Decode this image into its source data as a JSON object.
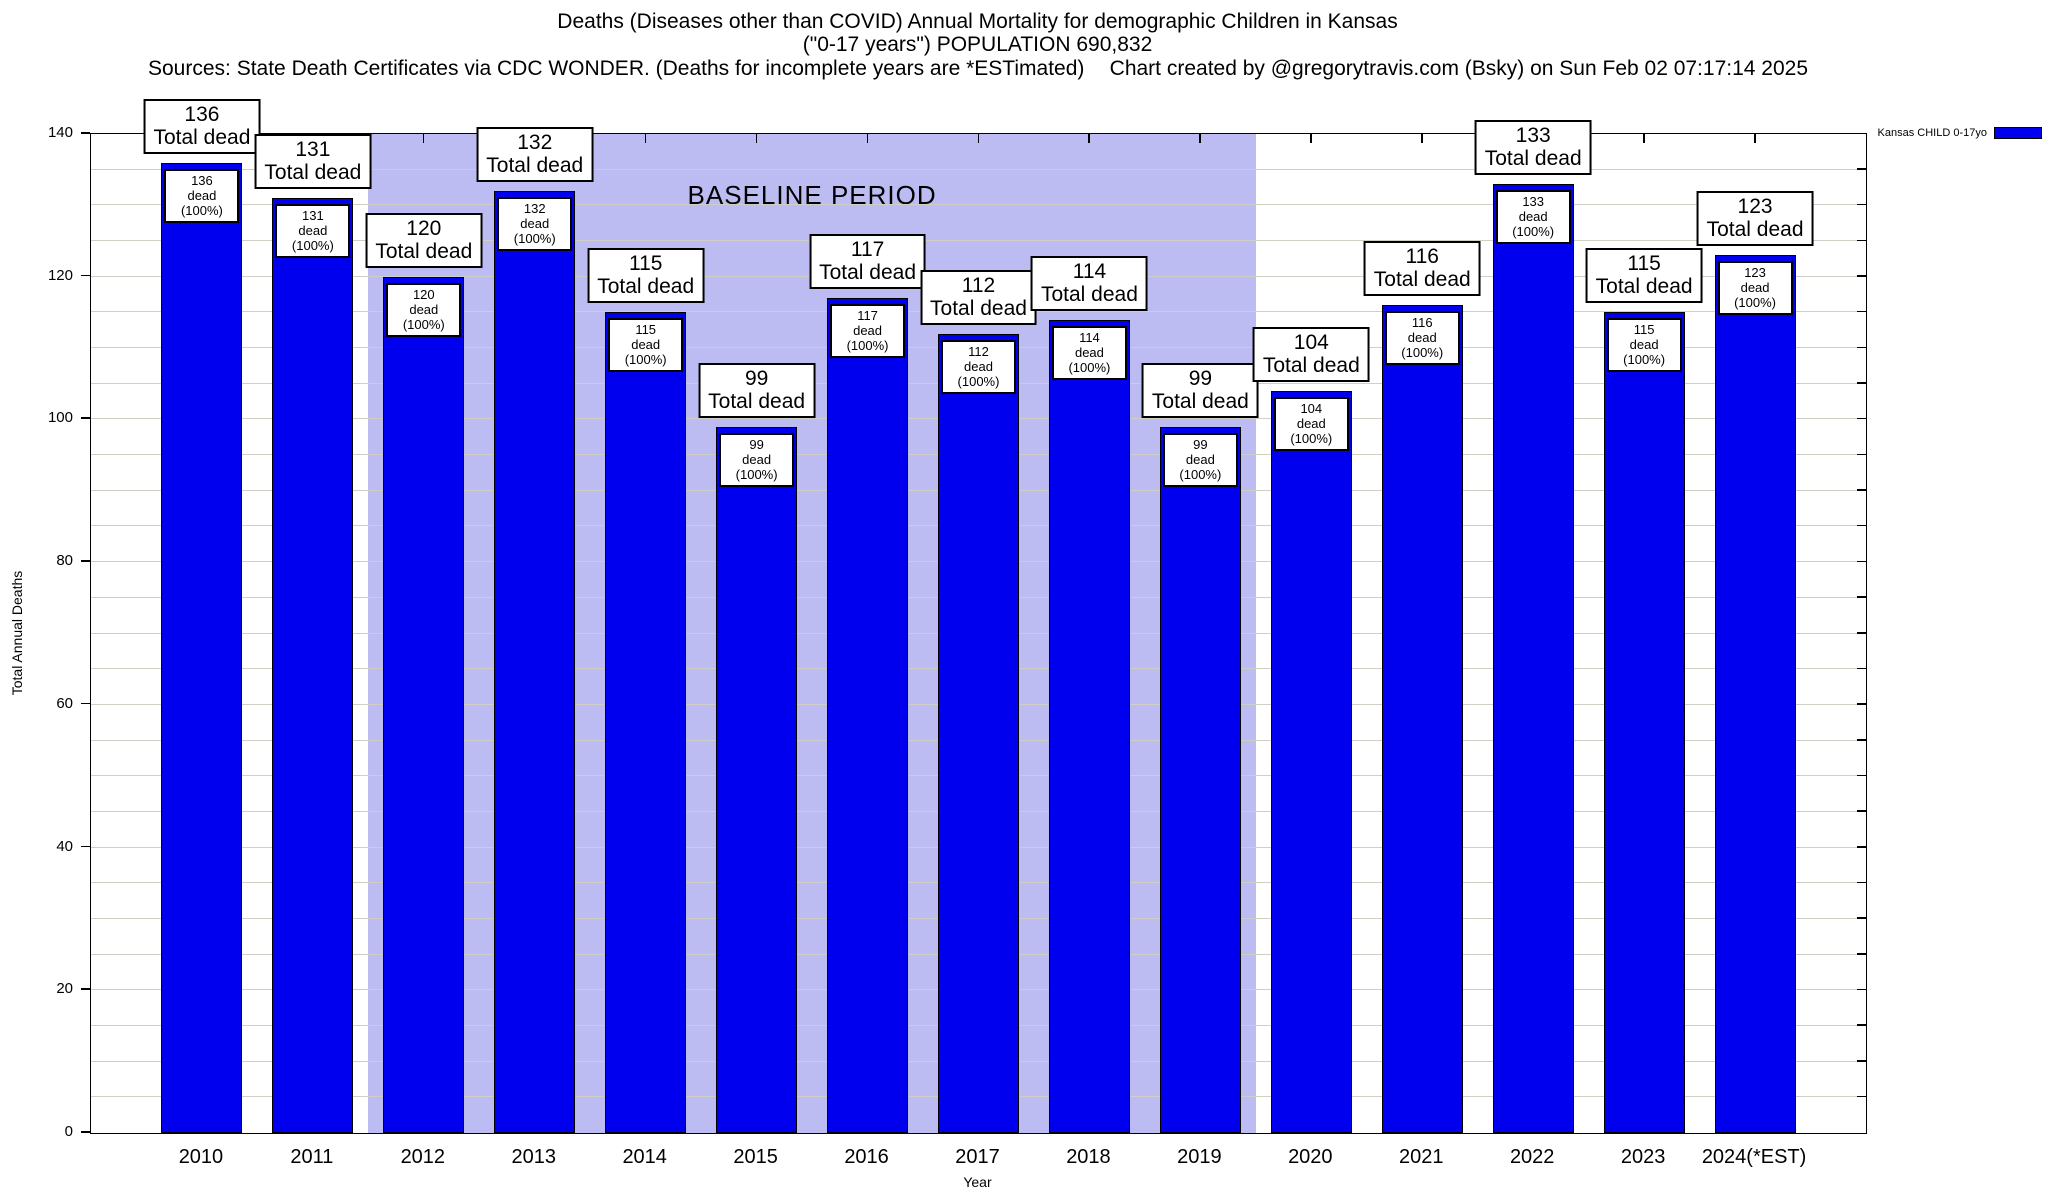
{
  "header": {
    "title_line1": "Deaths (Diseases other than COVID) Annual Mortality for demographic Children in Kansas",
    "title_line2": "(\"0-17 years\") POPULATION 690,832",
    "sources": "Sources: State Death Certificates via CDC WONDER. (Deaths for incomplete years are *ESTimated)",
    "credit": "Chart created by @gregorytravis.com (Bsky) on Sun Feb 02 07:17:14 2025"
  },
  "legend": {
    "label": "Kansas CHILD 0-17yo",
    "swatch_color": "#0000ee"
  },
  "chart_data": {
    "type": "bar",
    "title": "Deaths (Diseases other than COVID) Annual Mortality for demographic Children in Kansas (\"0-17 years\") POPULATION 690,832",
    "xlabel": "Year",
    "ylabel": "Total Annual Deaths",
    "ylim": [
      0,
      140
    ],
    "y_major_ticks": [
      0,
      20,
      40,
      60,
      80,
      100,
      120,
      140
    ],
    "y_minor_step": 5,
    "grid": true,
    "legend_position": "top-right",
    "bar_color": "#0000ee",
    "categories": [
      "2010",
      "2011",
      "2012",
      "2013",
      "2014",
      "2015",
      "2016",
      "2017",
      "2018",
      "2019",
      "2020",
      "2021",
      "2022",
      "2023",
      "2024(*EST)"
    ],
    "values": [
      136,
      131,
      120,
      132,
      115,
      99,
      117,
      112,
      114,
      99,
      104,
      116,
      133,
      115,
      123
    ],
    "bar_top_label_suffix": "Total dead",
    "bar_inner_label_suffix": "dead (100%)",
    "annotations": {
      "baseline": {
        "label": "BASELINE PERIOD",
        "start_category": "2012",
        "end_category": "2019",
        "color": "#bcbcf2"
      }
    }
  }
}
